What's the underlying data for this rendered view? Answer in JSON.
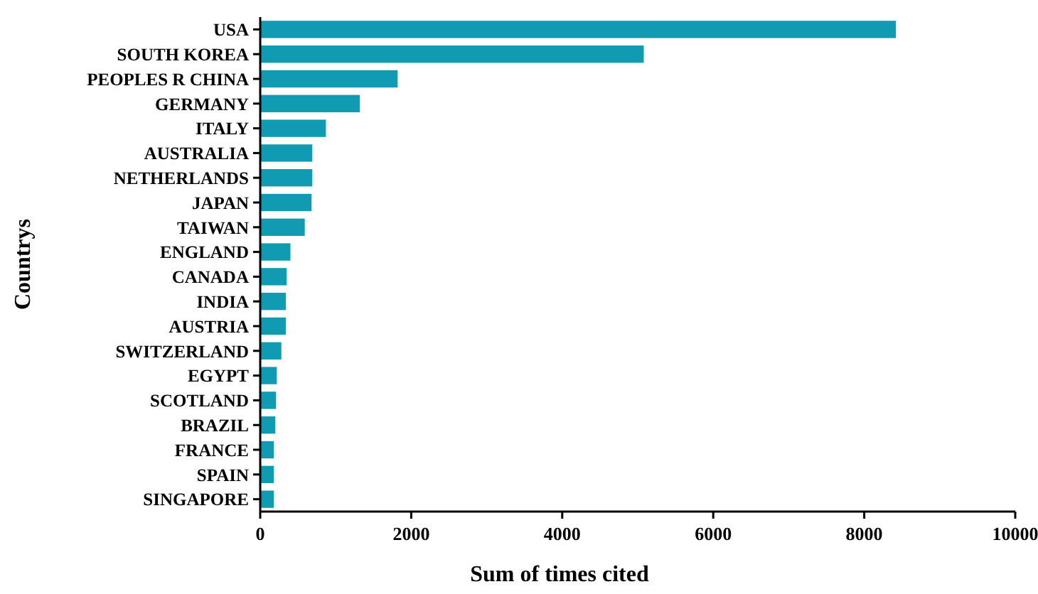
{
  "chart_data": {
    "type": "bar",
    "orientation": "horizontal",
    "xlabel": "Sum of times cited",
    "ylabel": "Countrys",
    "categories": [
      "USA",
      "SOUTH KOREA",
      "PEOPLES R CHINA",
      "GERMANY",
      "ITALY",
      "AUSTRALIA",
      "NETHERLANDS",
      "JAPAN",
      "TAIWAN",
      "ENGLAND",
      "CANADA",
      "INDIA",
      "AUSTRIA",
      "SWITZERLAND",
      "EGYPT",
      "SCOTLAND",
      "BRAZIL",
      "FRANCE",
      "SPAIN",
      "SINGAPORE"
    ],
    "values": [
      8420,
      5080,
      1820,
      1320,
      870,
      690,
      690,
      680,
      590,
      400,
      350,
      340,
      340,
      280,
      220,
      210,
      200,
      180,
      180,
      180
    ],
    "color": "#119bb3",
    "xlim": [
      0,
      10000
    ],
    "xticks": [
      0,
      2000,
      4000,
      6000,
      8000,
      10000
    ],
    "grid": false
  }
}
